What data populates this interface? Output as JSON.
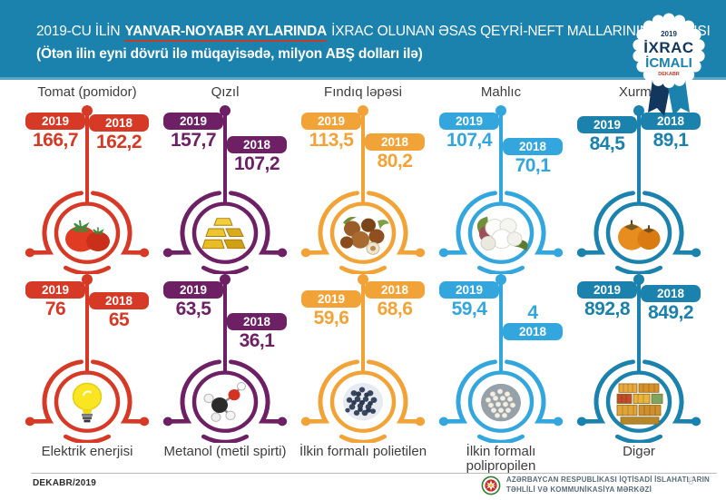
{
  "header": {
    "title_prefix": "2019-CU İLİN",
    "title_highlight": "YANVAR-NOYABR AYLARINDA",
    "title_suffix": "İXRAC OLUNAN ƏSAS QEYRİ-NEFT MALLARININ SİYAHISI",
    "subtitle": "(Ötən ilin eyni dövrü ilə müqayisədə, milyon ABŞ dolları ilə)",
    "bg_color": "#1b81ad",
    "underline_color": "#c23a28"
  },
  "badge": {
    "year": "2019",
    "line1": "İXRAC",
    "line2": "İCMALI",
    "small": "DEKABR",
    "navy": "#12365e",
    "blue": "#1b81ad",
    "red": "#c0392b"
  },
  "products": [
    {
      "name": "Tomat (pomidor)",
      "row": 1,
      "color": "#d63a27",
      "icon": "tomato-icon",
      "value_2019": "166,7",
      "value_2018": "162,2"
    },
    {
      "name": "Qızıl",
      "row": 1,
      "color": "#6e2065",
      "icon": "gold-bars-icon",
      "value_2019": "157,7",
      "value_2018": "107,2"
    },
    {
      "name": "Fındıq ləpəsi",
      "row": 1,
      "color": "#f2a338",
      "icon": "hazelnut-icon",
      "value_2019": "113,5",
      "value_2018": "80,2"
    },
    {
      "name": "Mahlıc",
      "row": 1,
      "color": "#33a7dd",
      "icon": "cotton-icon",
      "value_2019": "107,4",
      "value_2018": "70,1"
    },
    {
      "name": "Xurma",
      "row": 1,
      "color": "#1b81ad",
      "icon": "persimmon-icon",
      "value_2019": "84,5",
      "value_2018": "89,1"
    },
    {
      "name": "Elektrik enerjisi",
      "row": 2,
      "color": "#d63a27",
      "icon": "light-bulb-icon",
      "value_2019": "76",
      "value_2018": "65"
    },
    {
      "name": "Metanol (metil spirti)",
      "row": 2,
      "color": "#6e2065",
      "icon": "molecule-icon",
      "value_2019": "63,5",
      "value_2018": "36,1"
    },
    {
      "name": "İlkin formalı polietilen",
      "row": 2,
      "color": "#f2a338",
      "icon": "dark-pellets-icon",
      "value_2019": "59,6",
      "value_2018": "68,6"
    },
    {
      "name": "İlkin formalı polipropilen",
      "row": 2,
      "color": "#33a7dd",
      "icon": "white-pellets-icon",
      "value_2019": "59,4",
      "value_2018": "4"
    },
    {
      "name": "Digər",
      "row": 2,
      "color": "#1b81ad",
      "icon": "containers-icon",
      "value_2019": "892,8",
      "value_2018": "849,2"
    }
  ],
  "chart_data": {
    "type": "bar",
    "title": "2019-cu ilin yanvar-noyabr aylarında ixrac olunan əsas qeyri-neft mallarının siyahısı",
    "subtitle": "Ötən ilin eyni dövrü ilə müqayisədə",
    "unit": "milyon ABŞ dolları",
    "categories": [
      "Tomat (pomidor)",
      "Qızıl",
      "Fındıq ləpəsi",
      "Mahlıc",
      "Xurma",
      "Elektrik enerjisi",
      "Metanol (metil spirti)",
      "İlkin formalı polietilen",
      "İlkin formalı polipropilen",
      "Digər"
    ],
    "series": [
      {
        "name": "2019",
        "values": [
          166.7,
          157.7,
          113.5,
          107.4,
          84.5,
          76,
          63.5,
          59.6,
          59.4,
          892.8
        ]
      },
      {
        "name": "2018",
        "values": [
          162.2,
          107.2,
          80.2,
          70.1,
          89.1,
          65,
          36.1,
          68.6,
          4,
          849.2
        ]
      }
    ],
    "legend_position": "per-item year tags",
    "grid": false
  },
  "footer": {
    "left": "DEKABR/2019",
    "org_line1": "AZƏRBAYCAN RESPUBLİKASI İQTİSADİ İSLAHATLARIN",
    "org_line2": "TƏHLİLİ VƏ KOMMUNİKASİYA MƏRKƏZİ",
    "page": "8"
  }
}
